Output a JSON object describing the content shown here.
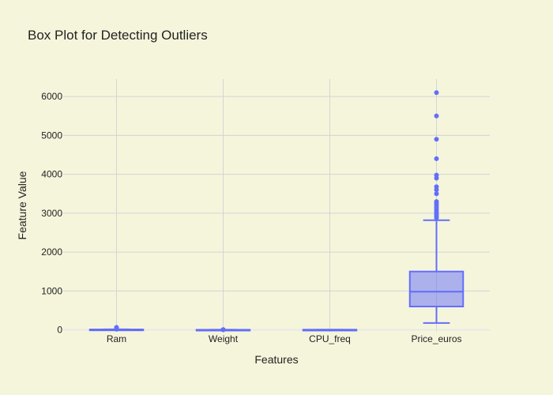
{
  "chart_data": {
    "type": "box",
    "title": "Box Plot for Detecting Outliers",
    "xlabel": "Features",
    "ylabel": "Feature Value",
    "categories": [
      "Ram",
      "Weight",
      "CPU_freq",
      "Price_euros"
    ],
    "ylim": [
      -50,
      6450
    ],
    "yticks": [
      0,
      1000,
      2000,
      3000,
      4000,
      5000,
      6000
    ],
    "color": "#636efa",
    "fill": "rgba(99,110,250,0.5)",
    "grid": true,
    "boxes": [
      {
        "name": "Ram",
        "min": 2,
        "q1": 4,
        "median": 8,
        "q3": 8,
        "max": 14,
        "outliers": [
          16,
          24,
          32,
          64
        ]
      },
      {
        "name": "Weight",
        "min": 0.7,
        "q1": 1.5,
        "median": 2.04,
        "q3": 2.3,
        "max": 3.6,
        "outliers": [
          3.8,
          4.0,
          4.4,
          4.7
        ]
      },
      {
        "name": "CPU_freq",
        "min": 0.9,
        "q1": 2.0,
        "median": 2.5,
        "q3": 2.7,
        "max": 3.6
      },
      {
        "name": "Price_euros",
        "min": 175,
        "q1": 600,
        "median": 980,
        "q3": 1500,
        "max": 2820,
        "outliers": [
          2880,
          2920,
          2960,
          3000,
          3050,
          3100,
          3150,
          3200,
          3250,
          3300,
          3500,
          3600,
          3680,
          3900,
          3980,
          4400,
          4900,
          5500,
          6100
        ]
      }
    ]
  }
}
